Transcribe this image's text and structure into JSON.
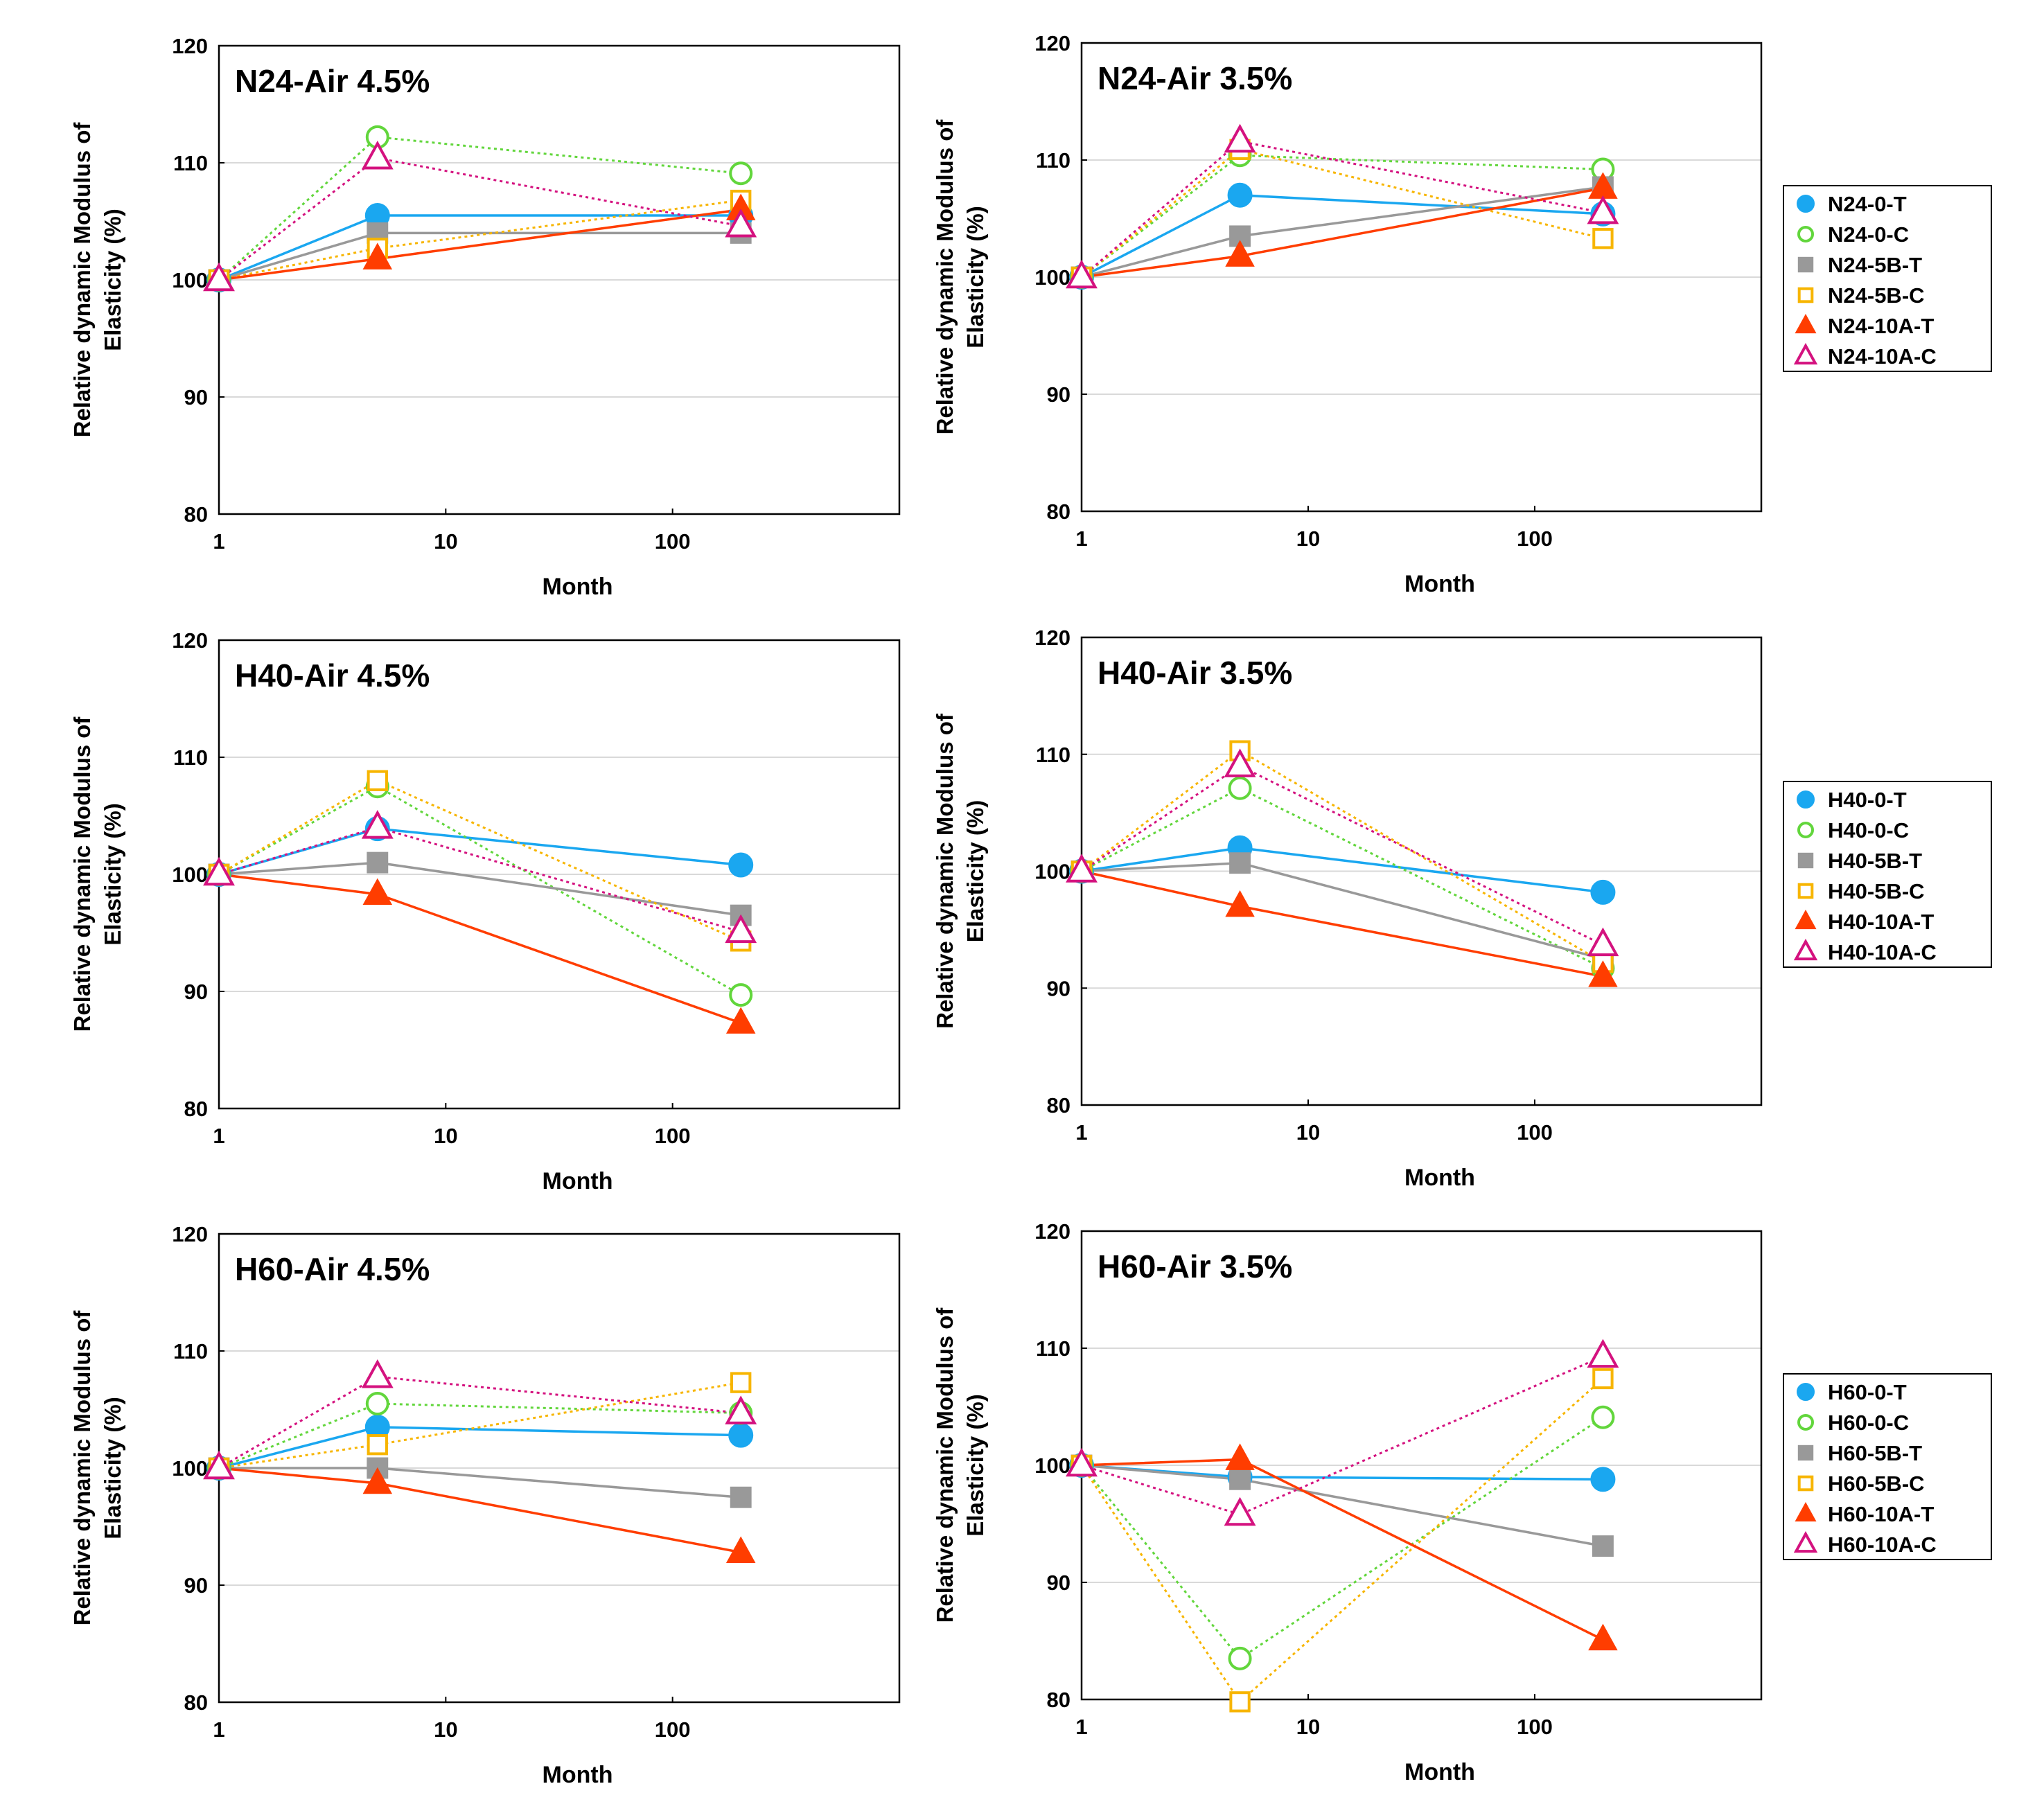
{
  "colors": {
    "0-T": "#1aa7f0",
    "0-C": "#62d63c",
    "5B-T": "#999999",
    "5B-C": "#f7b500",
    "10A-T": "#ff3d00",
    "10A-C": "#d4127f"
  },
  "chart_data": [
    {
      "type": "line",
      "title": "N24-Air 4.5%",
      "xlabel": "Month",
      "ylabel_line1": "Relative dynamic Modulus of",
      "ylabel_line2": "Elasticity (%)",
      "xscale": "log",
      "xlim": [
        1,
        1000
      ],
      "ylim": [
        80,
        120
      ],
      "yticks": [
        "80",
        "90",
        "100",
        "110",
        "120"
      ],
      "xticks": [
        "1",
        "10",
        "100"
      ],
      "x": [
        1,
        5,
        200
      ],
      "grid": true,
      "series": [
        {
          "name": "N24-0-T",
          "values": [
            100,
            105.5,
            105.5
          ]
        },
        {
          "name": "N24-0-C",
          "values": [
            100,
            112.2,
            109.1
          ]
        },
        {
          "name": "N24-5B-T",
          "values": [
            100,
            104,
            104
          ]
        },
        {
          "name": "N24-5B-C",
          "values": [
            100,
            102.7,
            106.8
          ]
        },
        {
          "name": "N24-10A-T",
          "values": [
            100,
            101.8,
            106
          ]
        },
        {
          "name": "N24-10A-C",
          "values": [
            100,
            110.4,
            104.6
          ]
        }
      ]
    },
    {
      "type": "line",
      "title": "N24-Air 3.5%",
      "xlabel": "Month",
      "ylabel_line1": "Relative dynamic Modulus of",
      "ylabel_line2": "Elasticity (%)",
      "xscale": "log",
      "xlim": [
        1,
        1000
      ],
      "ylim": [
        80,
        120
      ],
      "yticks": [
        "80",
        "90",
        "100",
        "110",
        "120"
      ],
      "xticks": [
        "1",
        "10",
        "100"
      ],
      "x": [
        1,
        5,
        200
      ],
      "grid": true,
      "legend_position": "right",
      "series": [
        {
          "name": "N24-0-T",
          "values": [
            100,
            107,
            105.4
          ]
        },
        {
          "name": "N24-0-C",
          "values": [
            100,
            110.4,
            109.2
          ]
        },
        {
          "name": "N24-5B-T",
          "values": [
            100,
            103.5,
            107.7
          ]
        },
        {
          "name": "N24-5B-C",
          "values": [
            100,
            110.9,
            103.3
          ]
        },
        {
          "name": "N24-10A-T",
          "values": [
            100,
            101.8,
            107.6
          ]
        },
        {
          "name": "N24-10A-C",
          "values": [
            100,
            111.6,
            105.5
          ]
        }
      ]
    },
    {
      "type": "line",
      "title": "H40-Air 4.5%",
      "xlabel": "Month",
      "ylabel_line1": "Relative dynamic Modulus of",
      "ylabel_line2": "Elasticity (%)",
      "xscale": "log",
      "xlim": [
        1,
        1000
      ],
      "ylim": [
        80,
        120
      ],
      "yticks": [
        "80",
        "90",
        "100",
        "110",
        "120"
      ],
      "xticks": [
        "1",
        "10",
        "100"
      ],
      "x": [
        1,
        5,
        200
      ],
      "grid": true,
      "series": [
        {
          "name": "H40-0-T",
          "values": [
            100,
            103.9,
            100.8
          ]
        },
        {
          "name": "H40-0-C",
          "values": [
            100,
            107.5,
            89.7
          ]
        },
        {
          "name": "H40-5B-T",
          "values": [
            100,
            101,
            96.5
          ]
        },
        {
          "name": "H40-5B-C",
          "values": [
            100,
            108,
            94.3
          ]
        },
        {
          "name": "H40-10A-T",
          "values": [
            100,
            98.3,
            87.3
          ]
        },
        {
          "name": "H40-10A-C",
          "values": [
            100,
            104,
            95.1
          ]
        }
      ]
    },
    {
      "type": "line",
      "title": "H40-Air 3.5%",
      "xlabel": "Month",
      "ylabel_line1": "Relative dynamic Modulus of",
      "ylabel_line2": "Elasticity (%)",
      "xscale": "log",
      "xlim": [
        1,
        1000
      ],
      "ylim": [
        80,
        120
      ],
      "yticks": [
        "80",
        "90",
        "100",
        "110",
        "120"
      ],
      "xticks": [
        "1",
        "10",
        "100"
      ],
      "x": [
        1,
        5,
        200
      ],
      "grid": true,
      "legend_position": "right",
      "series": [
        {
          "name": "H40-0-T",
          "values": [
            100,
            102,
            98.2
          ]
        },
        {
          "name": "H40-0-C",
          "values": [
            100,
            107.1,
            91.7
          ]
        },
        {
          "name": "H40-5B-T",
          "values": [
            100,
            100.7,
            92.5
          ]
        },
        {
          "name": "H40-5B-C",
          "values": [
            100,
            110.3,
            92.2
          ]
        },
        {
          "name": "H40-10A-T",
          "values": [
            100,
            97,
            91
          ]
        },
        {
          "name": "H40-10A-C",
          "values": [
            100,
            109,
            93.7
          ]
        }
      ]
    },
    {
      "type": "line",
      "title": "H60-Air 4.5%",
      "xlabel": "Month",
      "ylabel_line1": "Relative dynamic Modulus of",
      "ylabel_line2": "Elasticity (%)",
      "xscale": "log",
      "xlim": [
        1,
        1000
      ],
      "ylim": [
        80,
        120
      ],
      "yticks": [
        "80",
        "90",
        "100",
        "110",
        "120"
      ],
      "xticks": [
        "1",
        "10",
        "100"
      ],
      "x": [
        1,
        5,
        200
      ],
      "grid": true,
      "series": [
        {
          "name": "H60-0-T",
          "values": [
            100,
            103.5,
            102.8
          ]
        },
        {
          "name": "H60-0-C",
          "values": [
            100,
            105.5,
            104.7
          ]
        },
        {
          "name": "H60-5B-T",
          "values": [
            100,
            100,
            97.5
          ]
        },
        {
          "name": "H60-5B-C",
          "values": [
            100,
            102,
            107.3
          ]
        },
        {
          "name": "H60-10A-T",
          "values": [
            100,
            98.7,
            92.8
          ]
        },
        {
          "name": "H60-10A-C",
          "values": [
            100,
            107.8,
            104.7
          ]
        }
      ]
    },
    {
      "type": "line",
      "title": "H60-Air 3.5%",
      "xlabel": "Month",
      "ylabel_line1": "Relative dynamic Modulus of",
      "ylabel_line2": "Elasticity (%)",
      "xscale": "log",
      "xlim": [
        1,
        1000
      ],
      "ylim": [
        80,
        120
      ],
      "yticks": [
        "80",
        "90",
        "100",
        "110",
        "120"
      ],
      "xticks": [
        "1",
        "10",
        "100"
      ],
      "x": [
        1,
        5,
        200
      ],
      "grid": true,
      "legend_position": "right",
      "series": [
        {
          "name": "H60-0-T",
          "values": [
            100,
            99,
            98.8
          ]
        },
        {
          "name": "H60-0-C",
          "values": [
            100,
            83.5,
            104.1
          ]
        },
        {
          "name": "H60-5B-T",
          "values": [
            100,
            98.8,
            93.1
          ]
        },
        {
          "name": "H60-5B-C",
          "values": [
            100,
            79.8,
            107.4
          ]
        },
        {
          "name": "H60-10A-T",
          "values": [
            100,
            100.5,
            85.1
          ]
        },
        {
          "name": "H60-10A-C",
          "values": [
            100,
            95.8,
            109.3
          ]
        }
      ]
    }
  ]
}
